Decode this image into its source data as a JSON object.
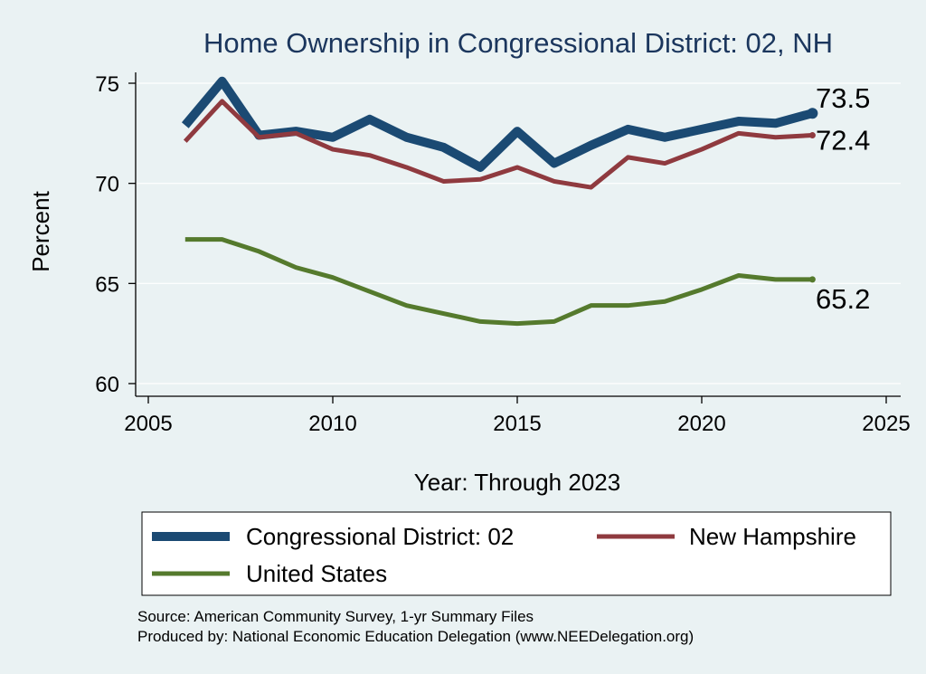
{
  "chart_data": {
    "type": "line",
    "title": "Home Ownership in Congressional District:  02, NH",
    "xlabel": "Year: Through 2023",
    "ylabel": "Percent",
    "xlim": [
      2005,
      2025
    ],
    "ylim": [
      60,
      75
    ],
    "xticks": [
      2005,
      2010,
      2015,
      2020,
      2025
    ],
    "yticks": [
      60,
      65,
      70,
      75
    ],
    "grid": true,
    "legend_position": "bottom",
    "x": [
      2006,
      2007,
      2008,
      2009,
      2010,
      2011,
      2012,
      2013,
      2014,
      2015,
      2016,
      2017,
      2018,
      2019,
      2020,
      2021,
      2022,
      2023
    ],
    "series": [
      {
        "name": "Congressional District:  02",
        "color": "#1b4a73",
        "values": [
          72.9,
          75.1,
          72.4,
          72.6,
          72.3,
          73.2,
          72.3,
          71.8,
          70.8,
          72.6,
          71.0,
          71.9,
          72.7,
          72.3,
          72.7,
          73.1,
          73.0,
          73.5
        ],
        "end_label": "73.5"
      },
      {
        "name": "New Hampshire",
        "color": "#8f3a3f",
        "values": [
          72.1,
          74.1,
          72.3,
          72.5,
          71.7,
          71.4,
          70.8,
          70.1,
          70.2,
          70.8,
          70.1,
          69.8,
          71.3,
          71.0,
          71.7,
          72.5,
          72.3,
          72.4
        ],
        "end_label": "72.4"
      },
      {
        "name": "United States",
        "color": "#557a2d",
        "values": [
          67.2,
          67.2,
          66.6,
          65.8,
          65.3,
          64.6,
          63.9,
          63.5,
          63.1,
          63.0,
          63.1,
          63.9,
          63.9,
          64.1,
          64.7,
          65.4,
          65.2,
          65.2
        ],
        "end_label": "65.2"
      }
    ]
  },
  "footer": {
    "source": "Source: American Community Survey, 1-yr Summary Files",
    "produced": "Produced by: National Economic Education Delegation (www.NEEDelegation.org)"
  }
}
